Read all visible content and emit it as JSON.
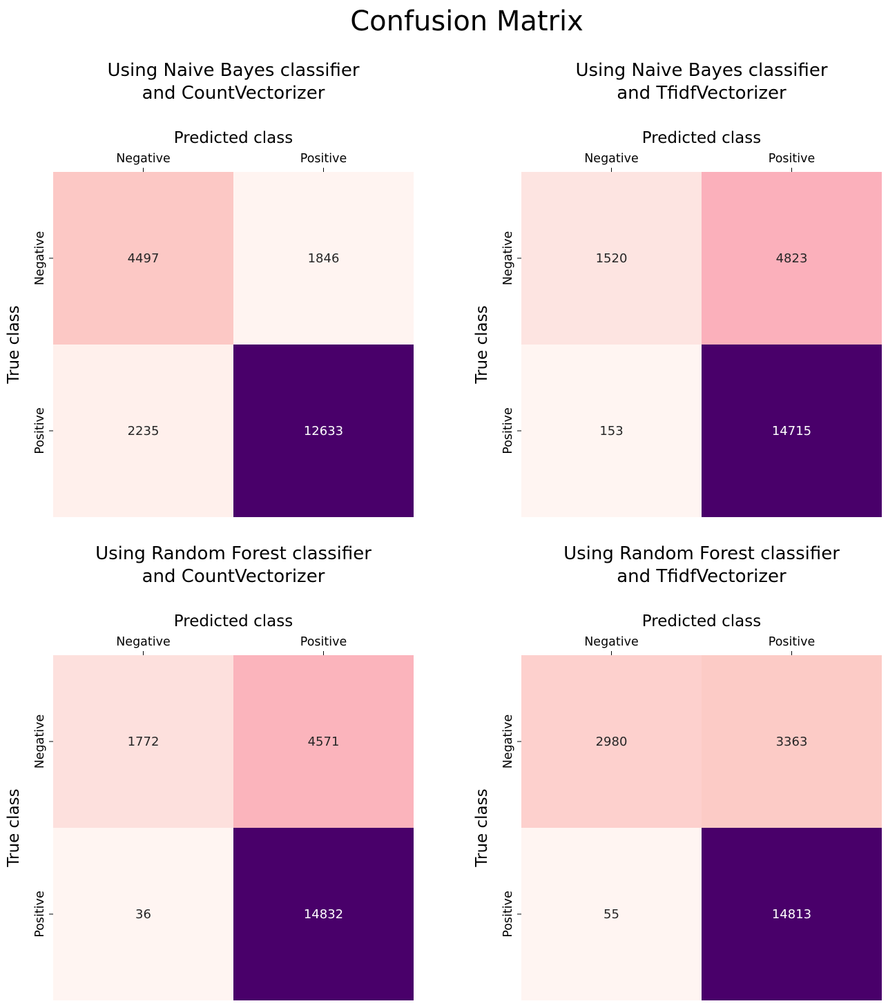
{
  "figure": {
    "title": "Confusion Matrix"
  },
  "chart_data": [
    {
      "type": "heatmap",
      "title": "Using Naive Bayes classifier\nand CountVectorizer",
      "xlabel": "Predicted class",
      "ylabel": "True class",
      "x_categories": [
        "Negative",
        "Positive"
      ],
      "y_categories": [
        "Negative",
        "Positive"
      ],
      "values": [
        [
          4497,
          1846
        ],
        [
          2235,
          12633
        ]
      ],
      "cell_colors": [
        [
          "#fcc8c5",
          "#fff4f1"
        ],
        [
          "#fff0ec",
          "#49006a"
        ]
      ],
      "colorbar": false
    },
    {
      "type": "heatmap",
      "title": "Using Naive Bayes classifier\nand TfidfVectorizer",
      "xlabel": "Predicted class",
      "ylabel": "True class",
      "x_categories": [
        "Negative",
        "Positive"
      ],
      "y_categories": [
        "Negative",
        "Positive"
      ],
      "values": [
        [
          1520,
          4823
        ],
        [
          153,
          14715
        ]
      ],
      "cell_colors": [
        [
          "#fde4e1",
          "#fbb0bb"
        ],
        [
          "#fff5f2",
          "#49006a"
        ]
      ],
      "colorbar": false
    },
    {
      "type": "heatmap",
      "title": "Using Random Forest classifier\nand CountVectorizer",
      "xlabel": "Predicted class",
      "ylabel": "True class",
      "x_categories": [
        "Negative",
        "Positive"
      ],
      "y_categories": [
        "Negative",
        "Positive"
      ],
      "values": [
        [
          1772,
          4571
        ],
        [
          36,
          14832
        ]
      ],
      "cell_colors": [
        [
          "#fde0dd",
          "#fbb4bc"
        ],
        [
          "#fff5f2",
          "#49006a"
        ]
      ],
      "colorbar": false
    },
    {
      "type": "heatmap",
      "title": "Using Random Forest classifier\nand TfidfVectorizer",
      "xlabel": "Predicted class",
      "ylabel": "True class",
      "x_categories": [
        "Negative",
        "Positive"
      ],
      "y_categories": [
        "Negative",
        "Positive"
      ],
      "values": [
        [
          2980,
          3363
        ],
        [
          55,
          14813
        ]
      ],
      "cell_colors": [
        [
          "#fdd0cd",
          "#fccbc6"
        ],
        [
          "#fff5f2",
          "#49006a"
        ]
      ],
      "colorbar": false
    }
  ]
}
